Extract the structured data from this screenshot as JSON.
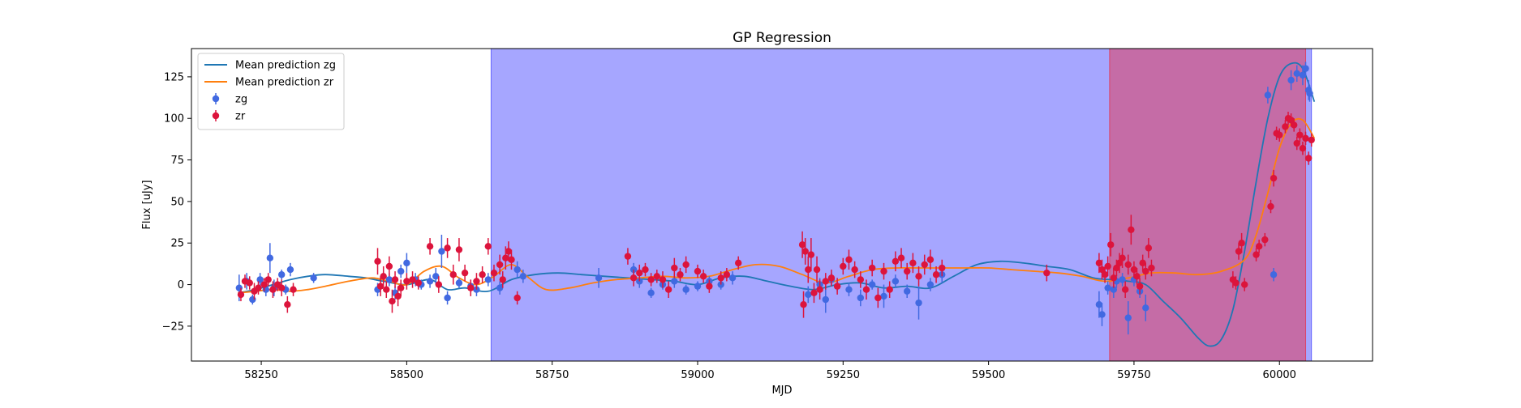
{
  "chart_data": {
    "type": "scatter",
    "title": "GP Regression",
    "xlabel": "MJD",
    "ylabel": "Flux [uJy]",
    "xlim": [
      58130,
      60160
    ],
    "ylim": [
      -46,
      142
    ],
    "xticks": [
      58250,
      58500,
      58750,
      59000,
      59250,
      59500,
      59750,
      60000
    ],
    "yticks": [
      -25,
      0,
      25,
      50,
      75,
      100,
      125
    ],
    "legend_position": "upper-left",
    "grid": false,
    "colors": {
      "zg_line": "#1f77b4",
      "zr_line": "#ff7f0e",
      "zg_points": "#4169e1",
      "zr_points": "#dc143c",
      "band_blue": "#0000ff",
      "band_red": "#ff0000"
    },
    "shaded_regions": [
      {
        "color": "blue",
        "x0": 58645,
        "x1": 60055
      },
      {
        "color": "red",
        "x0": 59708,
        "x1": 60045
      }
    ],
    "series": [
      {
        "name": "Mean prediction zg",
        "kind": "line",
        "x": [
          58210,
          58240,
          58270,
          58300,
          58330,
          58360,
          58400,
          58430,
          58460,
          58500,
          58540,
          58570,
          58600,
          58640,
          58680,
          58720,
          58760,
          58800,
          58840,
          58880,
          58920,
          58960,
          59000,
          59040,
          59080,
          59120,
          59160,
          59200,
          59240,
          59280,
          59320,
          59360,
          59400,
          59440,
          59480,
          59520,
          59560,
          59600,
          59640,
          59680,
          59710,
          59740,
          59770,
          59800,
          59830,
          59860,
          59880,
          59900,
          59920,
          59940,
          59960,
          59980,
          60000,
          60020,
          60040,
          60060
        ],
        "y": [
          -5,
          -3,
          0,
          3,
          5,
          6,
          5,
          4,
          2,
          0,
          3,
          -3,
          -2,
          -4,
          3,
          6,
          7,
          6,
          5,
          4,
          3,
          2,
          0,
          4,
          5,
          2,
          -1,
          -3,
          0,
          1,
          -2,
          -1,
          -2,
          5,
          12,
          14,
          13,
          11,
          9,
          4,
          3,
          2,
          0,
          -10,
          -20,
          -32,
          -37,
          -33,
          -15,
          20,
          62,
          100,
          125,
          133,
          130,
          110
        ]
      },
      {
        "name": "Mean prediction zr",
        "kind": "line",
        "x": [
          58210,
          58240,
          58270,
          58300,
          58330,
          58360,
          58400,
          58440,
          58470,
          58500,
          58530,
          58560,
          58590,
          58620,
          58650,
          58680,
          58710,
          58740,
          58780,
          58820,
          58860,
          58900,
          58940,
          58980,
          59020,
          59060,
          59100,
          59140,
          59180,
          59220,
          59260,
          59300,
          59340,
          59380,
          59420,
          59460,
          59500,
          59540,
          59580,
          59620,
          59660,
          59700,
          59740,
          59780,
          59820,
          59860,
          59900,
          59940,
          59960,
          59980,
          60000,
          60020,
          60040,
          60060
        ],
        "y": [
          -5,
          -4,
          -3,
          -4,
          -3,
          -1,
          2,
          4,
          2,
          0,
          8,
          11,
          4,
          0,
          5,
          12,
          4,
          -3,
          -2,
          1,
          3,
          4,
          5,
          4,
          5,
          9,
          12,
          11,
          6,
          1,
          5,
          9,
          10,
          10,
          10,
          10,
          10,
          9,
          8,
          7,
          5,
          2,
          4,
          7,
          7,
          6,
          8,
          15,
          30,
          55,
          82,
          97,
          99,
          88
        ]
      },
      {
        "name": "zg",
        "kind": "errorbar",
        "points": [
          [
            58212,
            -2,
            8
          ],
          [
            58225,
            2,
            5
          ],
          [
            58235,
            -9,
            3
          ],
          [
            58248,
            3,
            4
          ],
          [
            58258,
            -3,
            4
          ],
          [
            58265,
            16,
            9
          ],
          [
            58272,
            -2,
            5
          ],
          [
            58285,
            6,
            3
          ],
          [
            58292,
            -3,
            3
          ],
          [
            58300,
            9,
            4
          ],
          [
            58340,
            4,
            3
          ],
          [
            58450,
            -3,
            4
          ],
          [
            58470,
            3,
            4
          ],
          [
            58480,
            -5,
            4
          ],
          [
            58490,
            8,
            4
          ],
          [
            58500,
            13,
            6
          ],
          [
            58515,
            3,
            4
          ],
          [
            58525,
            0,
            3
          ],
          [
            58540,
            2,
            4
          ],
          [
            58550,
            5,
            5
          ],
          [
            58560,
            20,
            10
          ],
          [
            58570,
            -8,
            4
          ],
          [
            58590,
            1,
            3
          ],
          [
            58610,
            -1,
            4
          ],
          [
            58620,
            -3,
            4
          ],
          [
            58640,
            3,
            4
          ],
          [
            58660,
            -2,
            4
          ],
          [
            58690,
            9,
            5
          ],
          [
            58700,
            5,
            4
          ],
          [
            58830,
            4,
            6
          ],
          [
            58890,
            9,
            4
          ],
          [
            58900,
            2,
            4
          ],
          [
            58920,
            -5,
            3
          ],
          [
            58940,
            0,
            3
          ],
          [
            58960,
            2,
            4
          ],
          [
            58980,
            -3,
            3
          ],
          [
            59000,
            -1,
            3
          ],
          [
            59020,
            2,
            3
          ],
          [
            59040,
            0,
            3
          ],
          [
            59060,
            4,
            4
          ],
          [
            59190,
            -6,
            5
          ],
          [
            59210,
            0,
            4
          ],
          [
            59220,
            -9,
            8
          ],
          [
            59230,
            3,
            4
          ],
          [
            59240,
            -1,
            3
          ],
          [
            59260,
            -3,
            4
          ],
          [
            59280,
            -8,
            5
          ],
          [
            59300,
            0,
            3
          ],
          [
            59320,
            -7,
            7
          ],
          [
            59340,
            2,
            4
          ],
          [
            59360,
            -4,
            4
          ],
          [
            59380,
            -11,
            10
          ],
          [
            59400,
            0,
            4
          ],
          [
            59420,
            6,
            5
          ],
          [
            59690,
            -12,
            8
          ],
          [
            59695,
            -18,
            7
          ],
          [
            59705,
            -2,
            4
          ],
          [
            59715,
            -3,
            5
          ],
          [
            59720,
            2,
            4
          ],
          [
            59730,
            3,
            4
          ],
          [
            59740,
            -20,
            10
          ],
          [
            59750,
            3,
            4
          ],
          [
            59760,
            -4,
            4
          ],
          [
            59770,
            -14,
            8
          ],
          [
            59980,
            114,
            5
          ],
          [
            59990,
            6,
            4
          ],
          [
            60020,
            123,
            6
          ],
          [
            60030,
            127,
            5
          ],
          [
            60040,
            126,
            6
          ],
          [
            60045,
            130,
            4
          ],
          [
            60050,
            117,
            6
          ],
          [
            60052,
            115,
            5
          ]
        ]
      },
      {
        "name": "zr",
        "kind": "errorbar",
        "points": [
          [
            58215,
            -6,
            4
          ],
          [
            58222,
            2,
            4
          ],
          [
            58230,
            1,
            4
          ],
          [
            58238,
            -4,
            5
          ],
          [
            58245,
            -2,
            4
          ],
          [
            58255,
            0,
            4
          ],
          [
            58262,
            3,
            4
          ],
          [
            58270,
            -3,
            5
          ],
          [
            58278,
            0,
            4
          ],
          [
            58285,
            -2,
            5
          ],
          [
            58295,
            -12,
            5
          ],
          [
            58305,
            -3,
            4
          ],
          [
            58450,
            14,
            8
          ],
          [
            58455,
            -1,
            6
          ],
          [
            58460,
            5,
            6
          ],
          [
            58465,
            -3,
            5
          ],
          [
            58470,
            11,
            6
          ],
          [
            58475,
            -10,
            7
          ],
          [
            58480,
            3,
            5
          ],
          [
            58485,
            -7,
            6
          ],
          [
            58490,
            -2,
            5
          ],
          [
            58500,
            2,
            5
          ],
          [
            58510,
            3,
            5
          ],
          [
            58520,
            1,
            4
          ],
          [
            58540,
            23,
            5
          ],
          [
            58555,
            0,
            5
          ],
          [
            58570,
            22,
            6
          ],
          [
            58580,
            6,
            6
          ],
          [
            58590,
            21,
            7
          ],
          [
            58600,
            7,
            5
          ],
          [
            58610,
            -2,
            5
          ],
          [
            58620,
            2,
            5
          ],
          [
            58630,
            6,
            5
          ],
          [
            58640,
            23,
            5
          ],
          [
            58650,
            7,
            5
          ],
          [
            58660,
            12,
            6
          ],
          [
            58665,
            3,
            5
          ],
          [
            58670,
            16,
            7
          ],
          [
            58675,
            20,
            6
          ],
          [
            58680,
            15,
            6
          ],
          [
            58690,
            -8,
            4
          ],
          [
            58880,
            17,
            5
          ],
          [
            58890,
            4,
            5
          ],
          [
            58900,
            7,
            5
          ],
          [
            58910,
            9,
            4
          ],
          [
            58920,
            3,
            4
          ],
          [
            58930,
            5,
            4
          ],
          [
            58940,
            3,
            5
          ],
          [
            58950,
            -3,
            5
          ],
          [
            58960,
            10,
            6
          ],
          [
            58970,
            6,
            4
          ],
          [
            58980,
            12,
            5
          ],
          [
            59000,
            8,
            4
          ],
          [
            59010,
            5,
            4
          ],
          [
            59020,
            -1,
            4
          ],
          [
            59040,
            4,
            4
          ],
          [
            59050,
            6,
            4
          ],
          [
            59070,
            13,
            4
          ],
          [
            59180,
            24,
            8
          ],
          [
            59182,
            -12,
            8
          ],
          [
            59185,
            20,
            8
          ],
          [
            59190,
            9,
            8
          ],
          [
            59195,
            18,
            10
          ],
          [
            59200,
            -5,
            6
          ],
          [
            59205,
            9,
            8
          ],
          [
            59210,
            -3,
            6
          ],
          [
            59220,
            2,
            5
          ],
          [
            59230,
            4,
            5
          ],
          [
            59240,
            -1,
            5
          ],
          [
            59250,
            11,
            5
          ],
          [
            59260,
            15,
            6
          ],
          [
            59270,
            9,
            5
          ],
          [
            59280,
            3,
            5
          ],
          [
            59290,
            -3,
            6
          ],
          [
            59300,
            10,
            5
          ],
          [
            59310,
            -8,
            6
          ],
          [
            59320,
            8,
            5
          ],
          [
            59330,
            -3,
            5
          ],
          [
            59340,
            14,
            6
          ],
          [
            59350,
            16,
            6
          ],
          [
            59360,
            8,
            5
          ],
          [
            59370,
            13,
            6
          ],
          [
            59380,
            5,
            6
          ],
          [
            59390,
            12,
            6
          ],
          [
            59400,
            15,
            6
          ],
          [
            59410,
            6,
            5
          ],
          [
            59420,
            10,
            5
          ],
          [
            59600,
            7,
            5
          ],
          [
            59690,
            13,
            6
          ],
          [
            59695,
            9,
            6
          ],
          [
            59700,
            6,
            5
          ],
          [
            59705,
            11,
            6
          ],
          [
            59710,
            24,
            7
          ],
          [
            59715,
            4,
            6
          ],
          [
            59720,
            10,
            5
          ],
          [
            59725,
            13,
            6
          ],
          [
            59730,
            16,
            6
          ],
          [
            59735,
            -3,
            5
          ],
          [
            59740,
            12,
            6
          ],
          [
            59745,
            33,
            9
          ],
          [
            59750,
            9,
            5
          ],
          [
            59755,
            5,
            5
          ],
          [
            59760,
            -1,
            5
          ],
          [
            59765,
            13,
            5
          ],
          [
            59770,
            8,
            5
          ],
          [
            59775,
            22,
            6
          ],
          [
            59780,
            10,
            5
          ],
          [
            59920,
            3,
            5
          ],
          [
            59925,
            1,
            4
          ],
          [
            59930,
            20,
            5
          ],
          [
            59935,
            25,
            6
          ],
          [
            59940,
            0,
            4
          ],
          [
            59960,
            18,
            4
          ],
          [
            59965,
            23,
            4
          ],
          [
            59975,
            27,
            4
          ],
          [
            59985,
            47,
            4
          ],
          [
            59990,
            64,
            5
          ],
          [
            59995,
            91,
            4
          ],
          [
            60000,
            90,
            4
          ],
          [
            60010,
            95,
            4
          ],
          [
            60015,
            100,
            4
          ],
          [
            60020,
            99,
            4
          ],
          [
            60025,
            96,
            4
          ],
          [
            60030,
            85,
            4
          ],
          [
            60035,
            90,
            4
          ],
          [
            60040,
            82,
            4
          ],
          [
            60045,
            88,
            4
          ],
          [
            60050,
            76,
            4
          ],
          [
            60055,
            87,
            4
          ]
        ]
      }
    ]
  }
}
